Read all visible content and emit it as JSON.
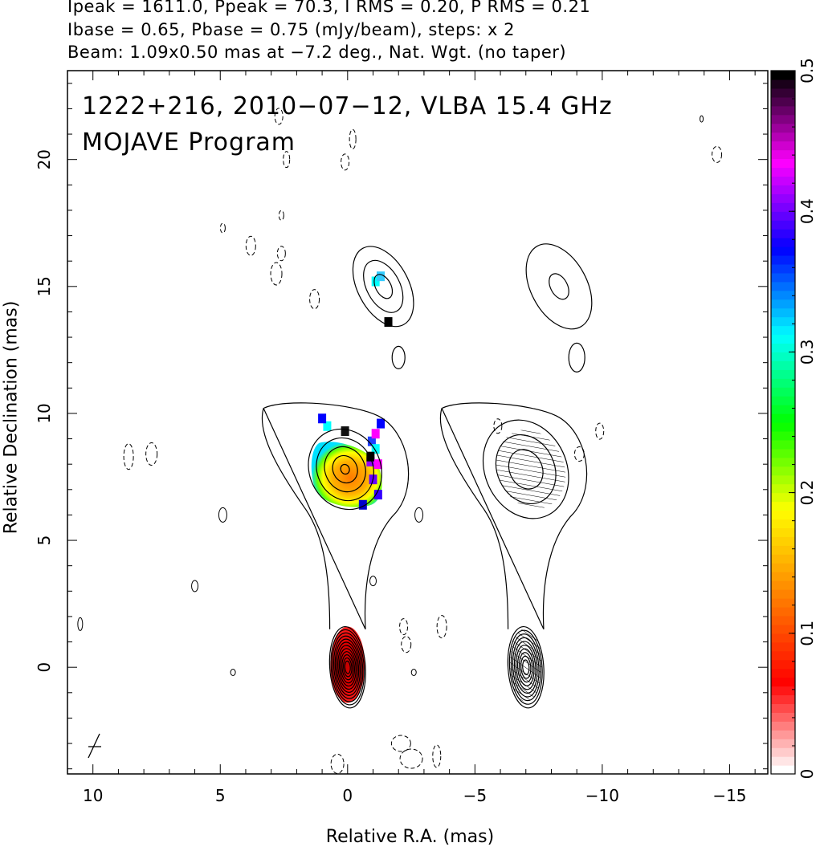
{
  "header": {
    "line1": "Ipeak = 1611.0, Ppeak = 70.3, I RMS = 0.20, P RMS = 0.21",
    "line2": "Ibase = 0.65, Pbase = 0.75 (mJy/beam), steps: x 2",
    "line3": "Beam: 1.09x0.50 mas at −7.2 deg., Nat. Wgt. (no taper)"
  },
  "chart_data": {
    "type": "heatmap",
    "title_lines": [
      "1222+216, 2010−07−12, VLBA 15.4 GHz",
      "MOJAVE Program"
    ],
    "xlabel": "Relative R.A. (mas)",
    "ylabel": "Relative Declination (mas)",
    "xlim": [
      11,
      -16.5
    ],
    "ylim": [
      -4.2,
      23.5
    ],
    "x_ticks": [
      10,
      5,
      0,
      -5,
      -10,
      -15
    ],
    "x_tick_labels": [
      "10",
      "5",
      "0",
      "−5",
      "−10",
      "−15"
    ],
    "y_ticks": [
      0,
      5,
      10,
      15,
      20
    ],
    "y_tick_labels": [
      "0",
      "5",
      "10",
      "15",
      "20"
    ],
    "colorbar": {
      "range": [
        0,
        0.5
      ],
      "ticks": [
        0,
        0.1,
        0.2,
        0.3,
        0.4,
        0.5
      ],
      "tick_labels": [
        "0",
        "0.1",
        "0.2",
        "0.3",
        "0.4",
        "0.5"
      ],
      "colormap": [
        "#ffffff",
        "#ff0000",
        "#ff8000",
        "#ffff00",
        "#00ff00",
        "#00ffff",
        "#0000ff",
        "#ff00ff",
        "#000000"
      ]
    },
    "panels": [
      {
        "name": "left",
        "total_intensity_contours": [
          {
            "component": "core",
            "center": [
              0.0,
              0.0
            ],
            "semi_axes_mas": [
              0.7,
              1.6
            ],
            "levels": 12
          },
          {
            "component": "jet-knot",
            "center": [
              0.1,
              7.8
            ],
            "semi_axes_mas": [
              1.4,
              1.7
            ],
            "levels": 5
          },
          {
            "component": "outer-knot",
            "center": [
              -1.4,
              15.0
            ],
            "semi_axes_mas": [
              1.0,
              1.7
            ],
            "levels": 3
          }
        ],
        "fractional_polarization_color": [
          {
            "region": "core",
            "center": [
              0.0,
              0.1
            ],
            "value": 0.05
          },
          {
            "region": "jet-knot",
            "center": [
              0.0,
              7.6
            ],
            "value": 0.15
          },
          {
            "region": "jet-knot-edge",
            "center": [
              -0.8,
              8.2
            ],
            "value": 0.35
          }
        ]
      },
      {
        "name": "right",
        "total_intensity_contours": [
          {
            "component": "core",
            "center": [
              -7.0,
              0.0
            ],
            "semi_axes_mas": [
              0.7,
              1.6
            ],
            "levels": 10
          },
          {
            "component": "jet-knot",
            "center": [
              -7.0,
              7.8
            ],
            "semi_axes_mas": [
              1.6,
              2.0
            ],
            "levels": 3
          },
          {
            "component": "outer-knot",
            "center": [
              -8.3,
              15.0
            ],
            "semi_axes_mas": [
              1.1,
              1.8
            ],
            "levels": 2
          }
        ]
      }
    ]
  }
}
